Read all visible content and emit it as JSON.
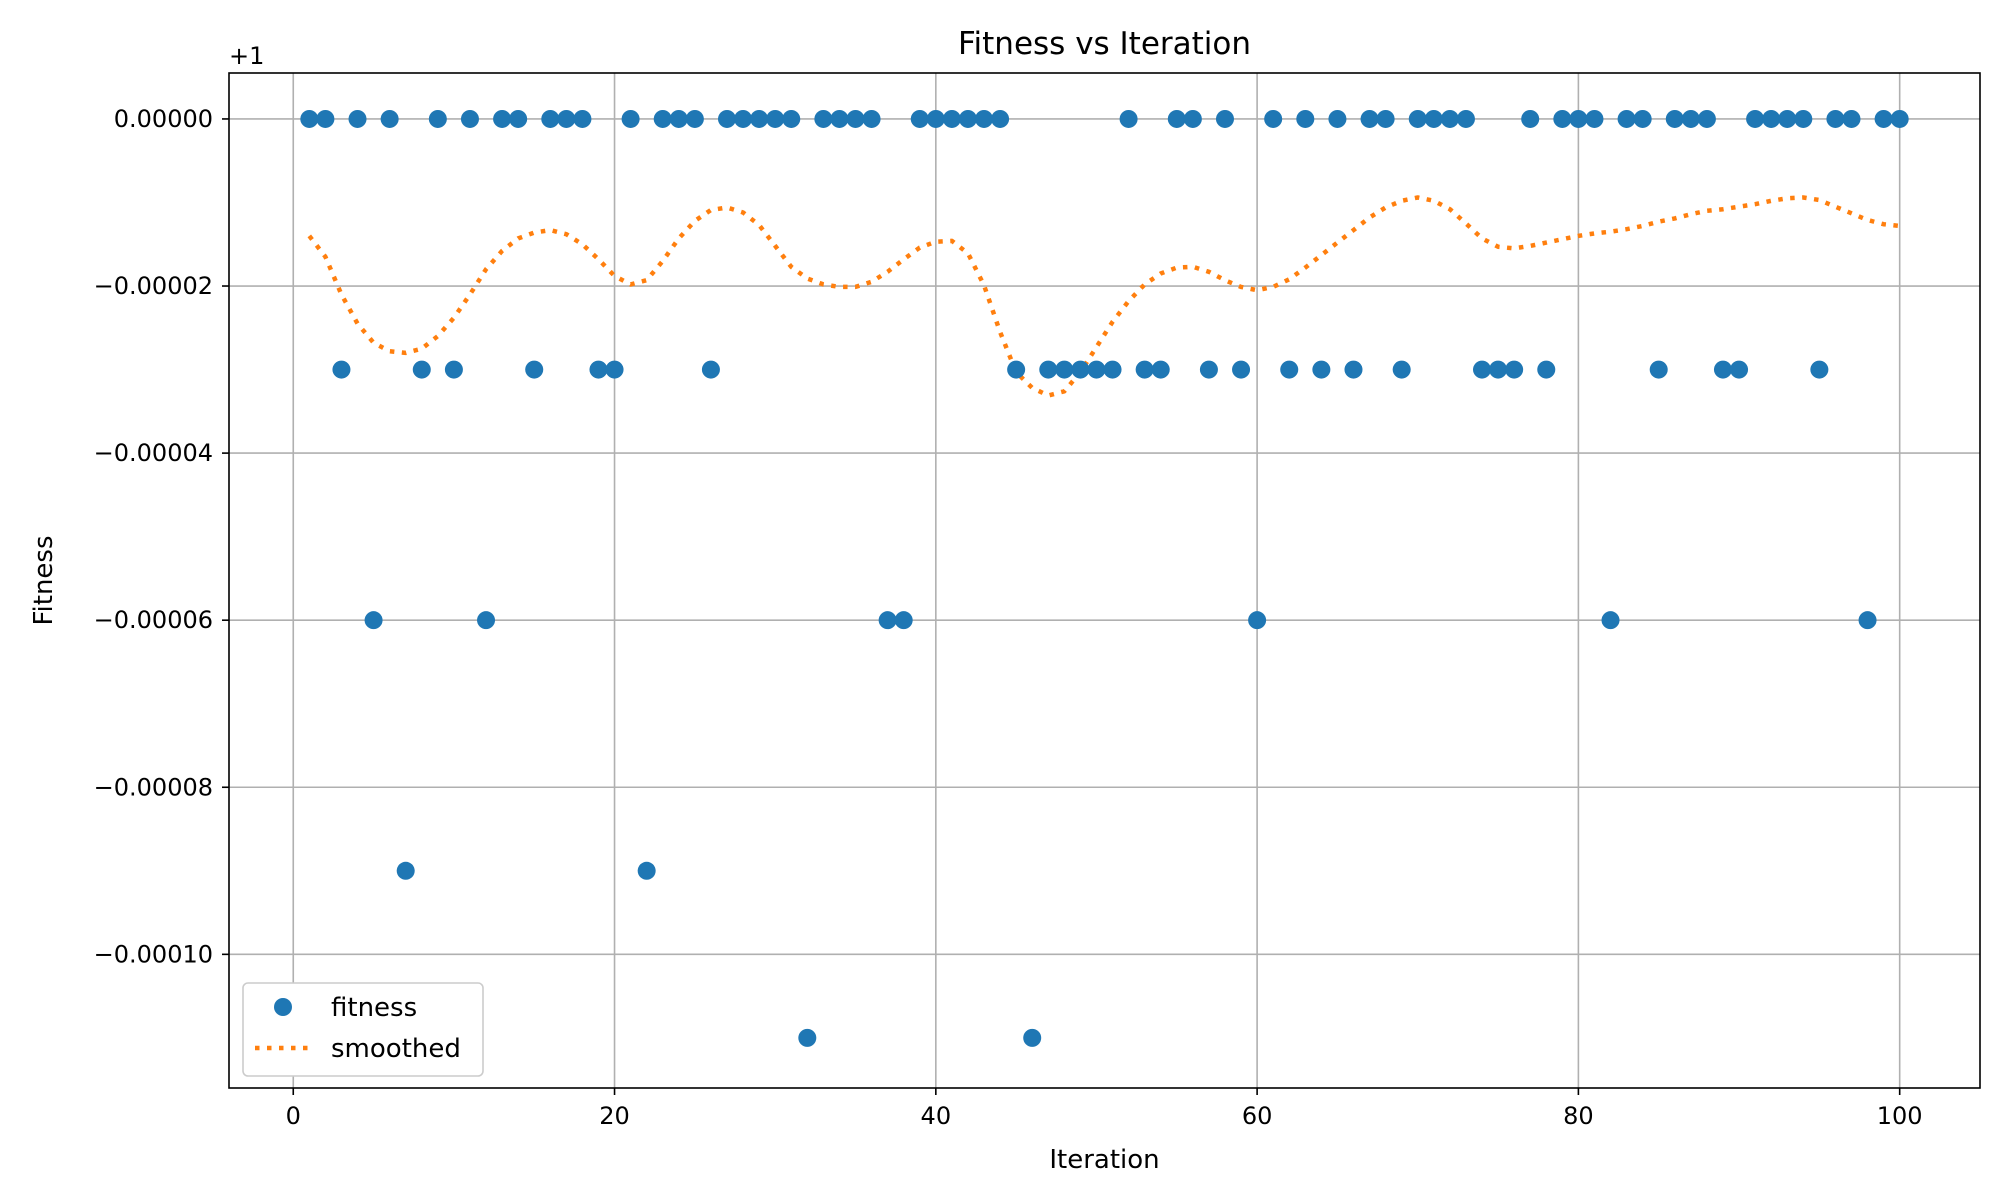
{
  "chart_data": {
    "type": "scatter",
    "title": "Fitness vs Iteration",
    "xlabel": "Iteration",
    "ylabel": "Fitness",
    "offset_label": "+1",
    "xlim": [
      -4,
      105
    ],
    "ylim": [
      -0.000116,
      5.5e-06
    ],
    "xticks": [
      0,
      20,
      40,
      60,
      80,
      100
    ],
    "xtick_labels": [
      "0",
      "20",
      "40",
      "60",
      "80",
      "100"
    ],
    "yticks": [
      0,
      -2e-05,
      -4e-05,
      -6e-05,
      -8e-05,
      -0.0001
    ],
    "ytick_labels": [
      "0.00000",
      "−0.00002",
      "−0.00004",
      "−0.00006",
      "−0.00008",
      "−0.00010"
    ],
    "grid": true,
    "legend_position": "lower-left",
    "series": [
      {
        "name": "fitness",
        "kind": "scatter",
        "color": "#1f77b4",
        "x": [
          1,
          2,
          3,
          4,
          5,
          6,
          7,
          8,
          9,
          10,
          11,
          12,
          13,
          14,
          15,
          16,
          17,
          18,
          19,
          20,
          21,
          22,
          23,
          24,
          25,
          26,
          27,
          28,
          29,
          30,
          31,
          32,
          33,
          34,
          35,
          36,
          37,
          38,
          39,
          40,
          41,
          42,
          43,
          44,
          45,
          46,
          47,
          48,
          49,
          50,
          51,
          52,
          53,
          54,
          55,
          56,
          57,
          58,
          59,
          60,
          61,
          62,
          63,
          64,
          65,
          66,
          67,
          68,
          69,
          70,
          71,
          72,
          73,
          74,
          75,
          76,
          77,
          78,
          79,
          80,
          81,
          82,
          83,
          84,
          85,
          86,
          87,
          88,
          89,
          90,
          91,
          92,
          93,
          94,
          95,
          96,
          97,
          98,
          99,
          100
        ],
        "y": [
          0,
          0,
          -3e-05,
          0,
          -6e-05,
          0,
          -9e-05,
          -3e-05,
          0,
          -3e-05,
          0,
          -6e-05,
          0,
          0,
          -3e-05,
          0,
          0,
          0,
          -3e-05,
          -3e-05,
          0,
          -9e-05,
          0,
          0,
          0,
          -3e-05,
          0,
          0,
          0,
          0,
          0,
          -0.00011,
          0,
          0,
          0,
          0,
          -6e-05,
          -6e-05,
          0,
          0,
          0,
          0,
          0,
          0,
          -3e-05,
          -0.00011,
          -3e-05,
          -3e-05,
          -3e-05,
          -3e-05,
          -3e-05,
          0,
          -3e-05,
          -3e-05,
          0,
          0,
          -3e-05,
          0,
          -3e-05,
          -6e-05,
          0,
          -3e-05,
          0,
          -3e-05,
          0,
          -3e-05,
          0,
          0,
          -3e-05,
          0,
          0,
          0,
          0,
          -3e-05,
          -3e-05,
          -3e-05,
          0,
          -3e-05,
          0,
          0,
          0,
          -6e-05,
          0,
          0,
          -3e-05,
          0,
          0,
          0,
          -3e-05,
          -3e-05,
          0,
          0,
          0,
          0,
          -3e-05,
          0,
          0,
          -6e-05,
          0,
          0
        ]
      },
      {
        "name": "smoothed",
        "kind": "line",
        "style": "dotted",
        "color": "#ff7f0e",
        "x": [
          1,
          2,
          3,
          4,
          5,
          6,
          7,
          8,
          9,
          10,
          11,
          12,
          13,
          14,
          15,
          16,
          17,
          18,
          19,
          20,
          21,
          22,
          23,
          24,
          25,
          26,
          27,
          28,
          29,
          30,
          31,
          32,
          33,
          34,
          35,
          36,
          37,
          38,
          39,
          40,
          41,
          42,
          43,
          44,
          45,
          46,
          47,
          48,
          49,
          50,
          51,
          52,
          53,
          54,
          55,
          56,
          57,
          58,
          59,
          60,
          61,
          62,
          63,
          64,
          65,
          66,
          67,
          68,
          69,
          70,
          71,
          72,
          73,
          74,
          75,
          76,
          77,
          78,
          79,
          80,
          81,
          82,
          83,
          84,
          85,
          86,
          87,
          88,
          89,
          90,
          91,
          92,
          93,
          94,
          95,
          96,
          97,
          98,
          99,
          100
        ],
        "y": [
          -1.4e-05,
          -1.65e-05,
          -2.1e-05,
          -2.45e-05,
          -2.68e-05,
          -2.78e-05,
          -2.8e-05,
          -2.75e-05,
          -2.6e-05,
          -2.38e-05,
          -2.1e-05,
          -1.8e-05,
          -1.58e-05,
          -1.43e-05,
          -1.36e-05,
          -1.33e-05,
          -1.38e-05,
          -1.5e-05,
          -1.68e-05,
          -1.88e-05,
          -1.98e-05,
          -1.93e-05,
          -1.7e-05,
          -1.43e-05,
          -1.22e-05,
          -1.09e-05,
          -1.06e-05,
          -1.12e-05,
          -1.27e-05,
          -1.52e-05,
          -1.77e-05,
          -1.91e-05,
          -1.98e-05,
          -2.01e-05,
          -2.01e-05,
          -1.95e-05,
          -1.83e-05,
          -1.68e-05,
          -1.54e-05,
          -1.47e-05,
          -1.46e-05,
          -1.61e-05,
          -1.99e-05,
          -2.55e-05,
          -3.03e-05,
          -3.22e-05,
          -3.31e-05,
          -3.26e-05,
          -3.03e-05,
          -2.73e-05,
          -2.43e-05,
          -2.18e-05,
          -1.98e-05,
          -1.85e-05,
          -1.78e-05,
          -1.77e-05,
          -1.83e-05,
          -1.93e-05,
          -2.01e-05,
          -2.05e-05,
          -2.01e-05,
          -1.92e-05,
          -1.78e-05,
          -1.63e-05,
          -1.48e-05,
          -1.33e-05,
          -1.18e-05,
          -1.06e-05,
          -9.8e-06,
          -9.4e-06,
          -9.8e-06,
          -1.08e-05,
          -1.25e-05,
          -1.43e-05,
          -1.53e-05,
          -1.55e-05,
          -1.52e-05,
          -1.48e-05,
          -1.44e-05,
          -1.4e-05,
          -1.37e-05,
          -1.35e-05,
          -1.32e-05,
          -1.28e-05,
          -1.23e-05,
          -1.19e-05,
          -1.14e-05,
          -1.1e-05,
          -1.08e-05,
          -1.05e-05,
          -1.02e-05,
          -9.8e-06,
          -9.5e-06,
          -9.4e-06,
          -9.7e-06,
          -1.05e-05,
          -1.13e-05,
          -1.21e-05,
          -1.26e-05,
          -1.28e-05
        ]
      }
    ]
  }
}
